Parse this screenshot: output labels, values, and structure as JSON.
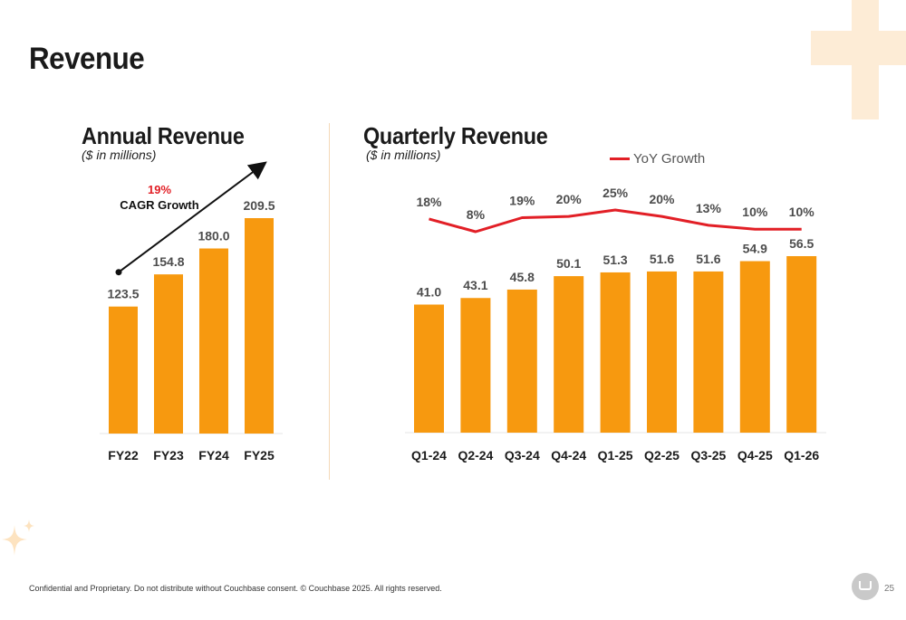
{
  "page": {
    "title": "Revenue",
    "footer": "Confidential and Proprietary. Do not distribute without Couchbase consent. © Couchbase 2025. All rights reserved.",
    "page_number": "25"
  },
  "annual": {
    "title": "Annual Revenue",
    "subtitle": "($ in millions)",
    "cagr_pct": "19%",
    "cagr_label": "CAGR Growth"
  },
  "quarterly": {
    "title": "Quarterly Revenue",
    "subtitle": "($ in millions)",
    "legend_label": "YoY Growth"
  },
  "colors": {
    "bar": "#f7990f",
    "line": "#e21f26",
    "accent_light": "#fdecd6"
  },
  "chart_data": [
    {
      "type": "bar",
      "title": "Annual Revenue",
      "categories": [
        "FY22",
        "FY23",
        "FY24",
        "FY25"
      ],
      "values": [
        123.5,
        154.8,
        180.0,
        209.5
      ],
      "value_labels": [
        "123.5",
        "154.8",
        "180.0",
        "209.5"
      ],
      "ylim": [
        0,
        209.5
      ]
    },
    {
      "type": "bar",
      "title": "Quarterly Revenue",
      "categories": [
        "Q1-24",
        "Q2-24",
        "Q3-24",
        "Q4-24",
        "Q1-25",
        "Q2-25",
        "Q3-25",
        "Q4-25",
        "Q1-26"
      ],
      "values": [
        41.0,
        43.1,
        45.8,
        50.1,
        51.3,
        51.6,
        51.6,
        54.9,
        56.5
      ],
      "value_labels": [
        "41.0",
        "43.1",
        "45.8",
        "50.1",
        "51.3",
        "51.6",
        "51.6",
        "54.9",
        "56.5"
      ],
      "ylim": [
        0,
        56.5
      ],
      "line_series": {
        "name": "YoY Growth",
        "values": [
          18,
          8,
          19,
          20,
          25,
          20,
          13,
          10,
          10
        ],
        "labels": [
          "18%",
          "8%",
          "19%",
          "20%",
          "25%",
          "20%",
          "13%",
          "10%",
          "10%"
        ]
      }
    }
  ]
}
